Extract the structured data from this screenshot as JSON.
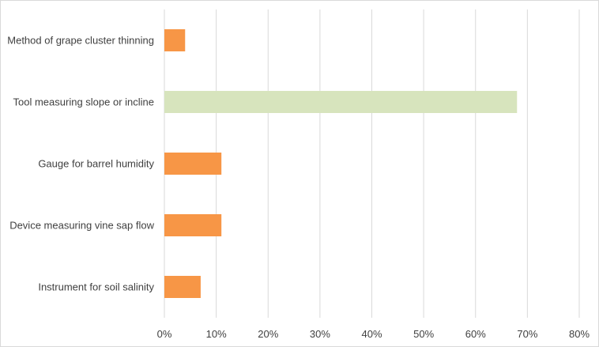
{
  "chart_data": {
    "type": "bar",
    "orientation": "horizontal",
    "categories": [
      "Method of grape cluster thinning",
      "Tool measuring slope or incline",
      "Gauge for barrel humidity",
      "Device measuring vine sap flow",
      "Instrument for soil salinity"
    ],
    "values": [
      4,
      68,
      11,
      11,
      7
    ],
    "bar_colors": [
      "#f79646",
      "#d7e4bd",
      "#f79646",
      "#f79646",
      "#f79646"
    ],
    "x_ticks": [
      "0%",
      "10%",
      "20%",
      "30%",
      "40%",
      "50%",
      "60%",
      "70%",
      "80%"
    ],
    "xlim": [
      0,
      80
    ],
    "grid": true,
    "legend": "none",
    "title": "",
    "xlabel": "",
    "ylabel": ""
  }
}
